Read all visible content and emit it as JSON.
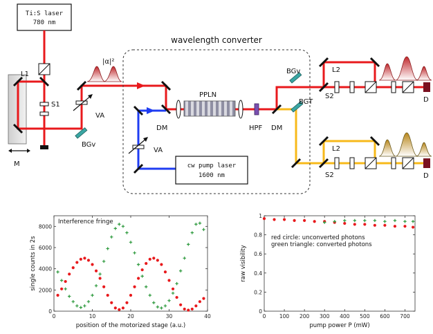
{
  "diagram": {
    "ti_laser": {
      "line1": "Ti:S laser",
      "line2": "780 nm"
    },
    "pump_laser": {
      "line1": "cw pump laser",
      "line2": "1600 nm"
    },
    "converter_label": "wavelength converter",
    "labels": {
      "L1": "L1",
      "S1": "S1",
      "M": "M",
      "VA1": "VA",
      "BGV1": "BGv",
      "alpha": "|α|²",
      "PPLN": "PPLN",
      "DM1": "DM",
      "VA2": "VA",
      "HPF": "HPF",
      "DM2": "DM",
      "BGV2": "BGv",
      "BGT": "BGT",
      "L2a": "L2",
      "S2a": "S2",
      "Da": "D",
      "L2b": "L2",
      "S2b": "S2",
      "Db": "D"
    },
    "colors": {
      "red": "#e8191c",
      "blue": "#1f3df2",
      "yellow": "#f7b91a",
      "teal": "#3aa6a3",
      "detector": "#7a1020"
    }
  },
  "chart_data": [
    {
      "type": "scatter",
      "title": "Interference fringe",
      "xlabel": "position of the motorized stage (a.u.)",
      "ylabel": "single counts in 2s",
      "xlim": [
        0,
        40
      ],
      "ylim": [
        0,
        9000
      ],
      "xticks": [
        0,
        10,
        20,
        30,
        40
      ],
      "yticks": [
        0,
        2000,
        4000,
        6000,
        8000
      ],
      "series": [
        {
          "marker": "circle",
          "color": "#e8191c",
          "x": [
            1,
            2,
            3,
            4,
            5,
            6,
            7,
            8,
            9,
            10,
            11,
            12,
            13,
            14,
            15,
            16,
            17,
            18,
            19,
            20,
            21,
            22,
            23,
            24,
            25,
            26,
            27,
            28,
            29,
            30,
            31,
            32,
            33,
            34,
            35,
            36,
            37,
            38,
            39
          ],
          "y": [
            1500,
            2100,
            2800,
            3500,
            4100,
            4600,
            4900,
            5000,
            4800,
            4400,
            3800,
            3100,
            2300,
            1500,
            800,
            300,
            150,
            300,
            800,
            1500,
            2300,
            3100,
            3900,
            4500,
            4900,
            5000,
            4800,
            4400,
            3700,
            2900,
            2100,
            1300,
            600,
            200,
            100,
            200,
            500,
            900,
            1200
          ]
        },
        {
          "marker": "plus",
          "color": "#2e9a3e",
          "x": [
            1,
            2,
            3,
            4,
            5,
            6,
            7,
            8,
            9,
            10,
            11,
            12,
            13,
            14,
            15,
            16,
            17,
            18,
            19,
            20,
            21,
            22,
            23,
            24,
            25,
            26,
            27,
            28,
            29,
            30,
            31,
            32,
            33,
            34,
            35,
            36,
            37,
            38,
            39
          ],
          "y": [
            3700,
            2900,
            2100,
            1400,
            900,
            500,
            350,
            500,
            900,
            1500,
            2400,
            3500,
            4700,
            5900,
            7000,
            7800,
            8200,
            8000,
            7400,
            6500,
            5500,
            4400,
            3300,
            2300,
            1500,
            800,
            400,
            300,
            500,
            1000,
            1700,
            2600,
            3800,
            5000,
            6300,
            7400,
            8200,
            8300,
            7700
          ]
        }
      ]
    },
    {
      "type": "scatter",
      "title": "",
      "legend_lines": [
        "red circle: unconverted photons",
        "green triangle: converted photons"
      ],
      "xlabel": "pump power P (mW)",
      "ylabel": "raw visibility",
      "xlim": [
        0,
        750
      ],
      "ylim": [
        0,
        1.0
      ],
      "xticks": [
        0,
        100,
        200,
        300,
        400,
        500,
        600,
        700
      ],
      "yticks": [
        0,
        0.2,
        0.4,
        0.6,
        0.8,
        1.0
      ],
      "series": [
        {
          "marker": "circle",
          "color": "#e8191c",
          "x": [
            0,
            50,
            100,
            150,
            200,
            250,
            300,
            350,
            400,
            450,
            500,
            550,
            600,
            650,
            700,
            740
          ],
          "y": [
            0.97,
            0.96,
            0.96,
            0.95,
            0.95,
            0.94,
            0.94,
            0.93,
            0.92,
            0.91,
            0.91,
            0.9,
            0.9,
            0.89,
            0.89,
            0.88
          ]
        },
        {
          "marker": "plus",
          "color": "#2e9a3e",
          "x": [
            300,
            350,
            400,
            450,
            500,
            550,
            600,
            650,
            700,
            740
          ],
          "y": [
            0.93,
            0.94,
            0.95,
            0.95,
            0.95,
            0.95,
            0.94,
            0.95,
            0.94,
            0.94
          ]
        }
      ]
    }
  ]
}
